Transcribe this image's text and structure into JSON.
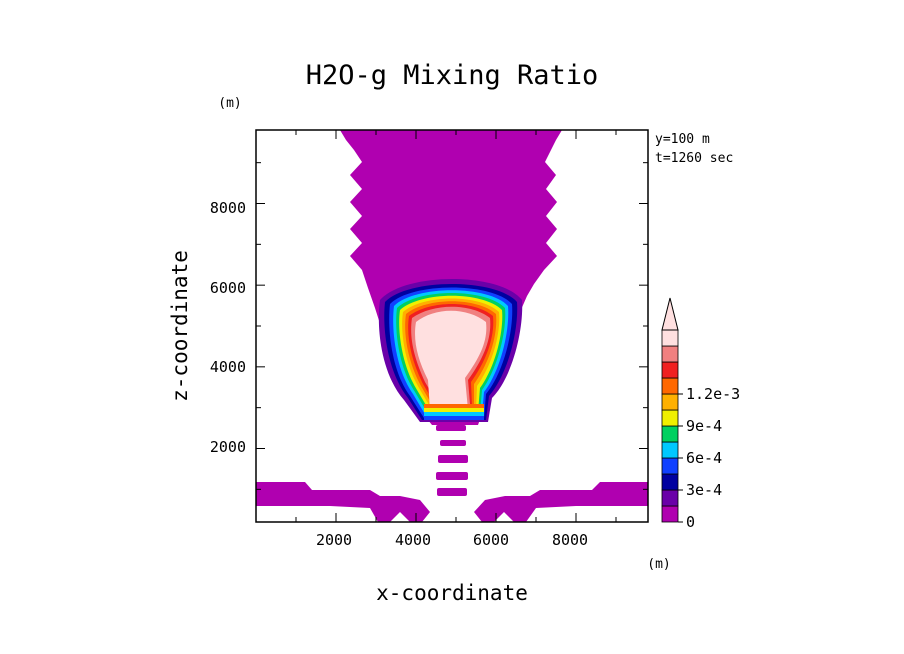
{
  "chart_data": {
    "type": "heatmap",
    "title": "H2O-g Mixing Ratio",
    "xlabel": "x-coordinate",
    "ylabel": "z-coordinate",
    "x_unit": "(m)",
    "y_unit": "(m)",
    "annotations": [
      "y=100 m",
      "t=1260 sec"
    ],
    "xlim": [
      0,
      9800
    ],
    "ylim": [
      200,
      9800
    ],
    "x_ticks": [
      2000,
      4000,
      6000,
      8000
    ],
    "y_ticks": [
      2000,
      4000,
      6000,
      8000
    ],
    "x_tick_labels": [
      "2000",
      "4000",
      "6000",
      "8000"
    ],
    "y_tick_labels": [
      "2000",
      "4000",
      "6000",
      "8000"
    ],
    "colorbar": {
      "levels": [
        0,
        0.00015,
        0.0003,
        0.00045,
        0.0006,
        0.00075,
        0.0009,
        0.00105,
        0.0012
      ],
      "labels": [
        "0",
        "3e-4",
        "6e-4",
        "9e-4",
        "1.2e-3"
      ],
      "colors": [
        "#b000b0",
        "#6a00a8",
        "#0000a0",
        "#1040ff",
        "#00c8ff",
        "#00d060",
        "#f0f000",
        "#ffb000",
        "#ff6800",
        "#f02020",
        "#f08080",
        "#ffe0e0"
      ],
      "extend": "max"
    },
    "features": [
      {
        "name": "upper plume",
        "level": 0,
        "x_range": [
          2400,
          7500
        ],
        "z_range": [
          5000,
          9800
        ]
      },
      {
        "name": "cloud core",
        "level": 0.0012,
        "x_range": [
          4000,
          6000
        ],
        "z_range": [
          2800,
          5900
        ]
      },
      {
        "name": "rising bubbles",
        "level": 0,
        "x_range": [
          4500,
          5400
        ],
        "z_range": [
          700,
          2100
        ]
      },
      {
        "name": "boundary layer",
        "level": 0,
        "x_range": [
          0,
          9800
        ],
        "z_range": [
          200,
          1100
        ]
      }
    ]
  }
}
